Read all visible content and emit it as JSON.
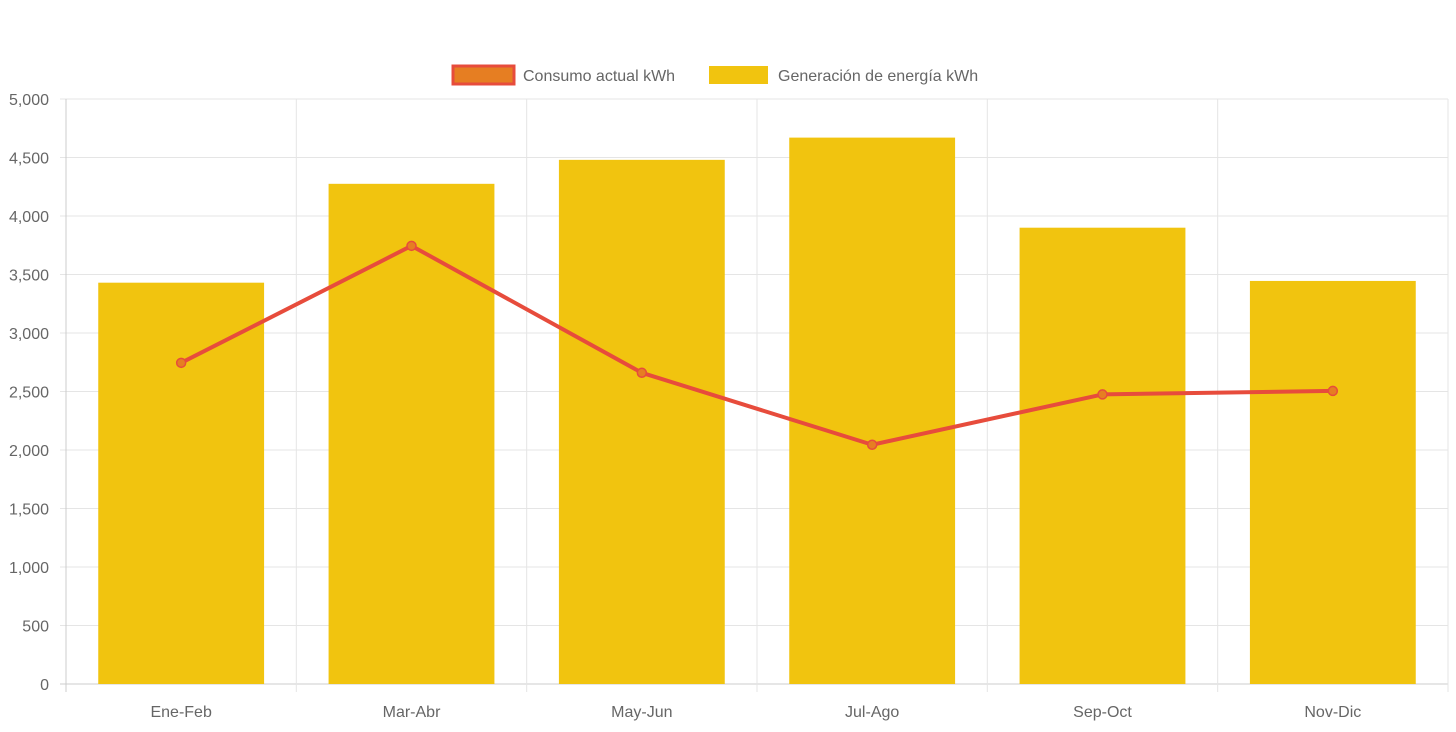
{
  "chart_data": {
    "type": "bar",
    "title": "",
    "xlabel": "",
    "ylabel": "",
    "ylim": [
      0,
      5000
    ],
    "y_ticks": [
      "0",
      "500",
      "1,000",
      "1,500",
      "2,000",
      "2,500",
      "3,000",
      "3,500",
      "4,000",
      "4,500",
      "5,000"
    ],
    "y_tick_values": [
      0,
      500,
      1000,
      1500,
      2000,
      2500,
      3000,
      3500,
      4000,
      4500,
      5000
    ],
    "grid": true,
    "legend_position": "top-center",
    "categories": [
      "Ene-Feb",
      "Mar-Abr",
      "May-Jun",
      "Jul-Ago",
      "Sep-Oct",
      "Nov-Dic"
    ],
    "series": [
      {
        "name": "Consumo actual kWh",
        "type": "line",
        "color": "#e74c3c",
        "fill": "#e67e22",
        "values": [
          2745,
          3745,
          2660,
          2045,
          2475,
          2505
        ]
      },
      {
        "name": "Generación de energía kWh",
        "type": "bar",
        "color": "#f1c40f",
        "values": [
          3430,
          4275,
          4480,
          4670,
          3900,
          3445
        ]
      }
    ]
  }
}
